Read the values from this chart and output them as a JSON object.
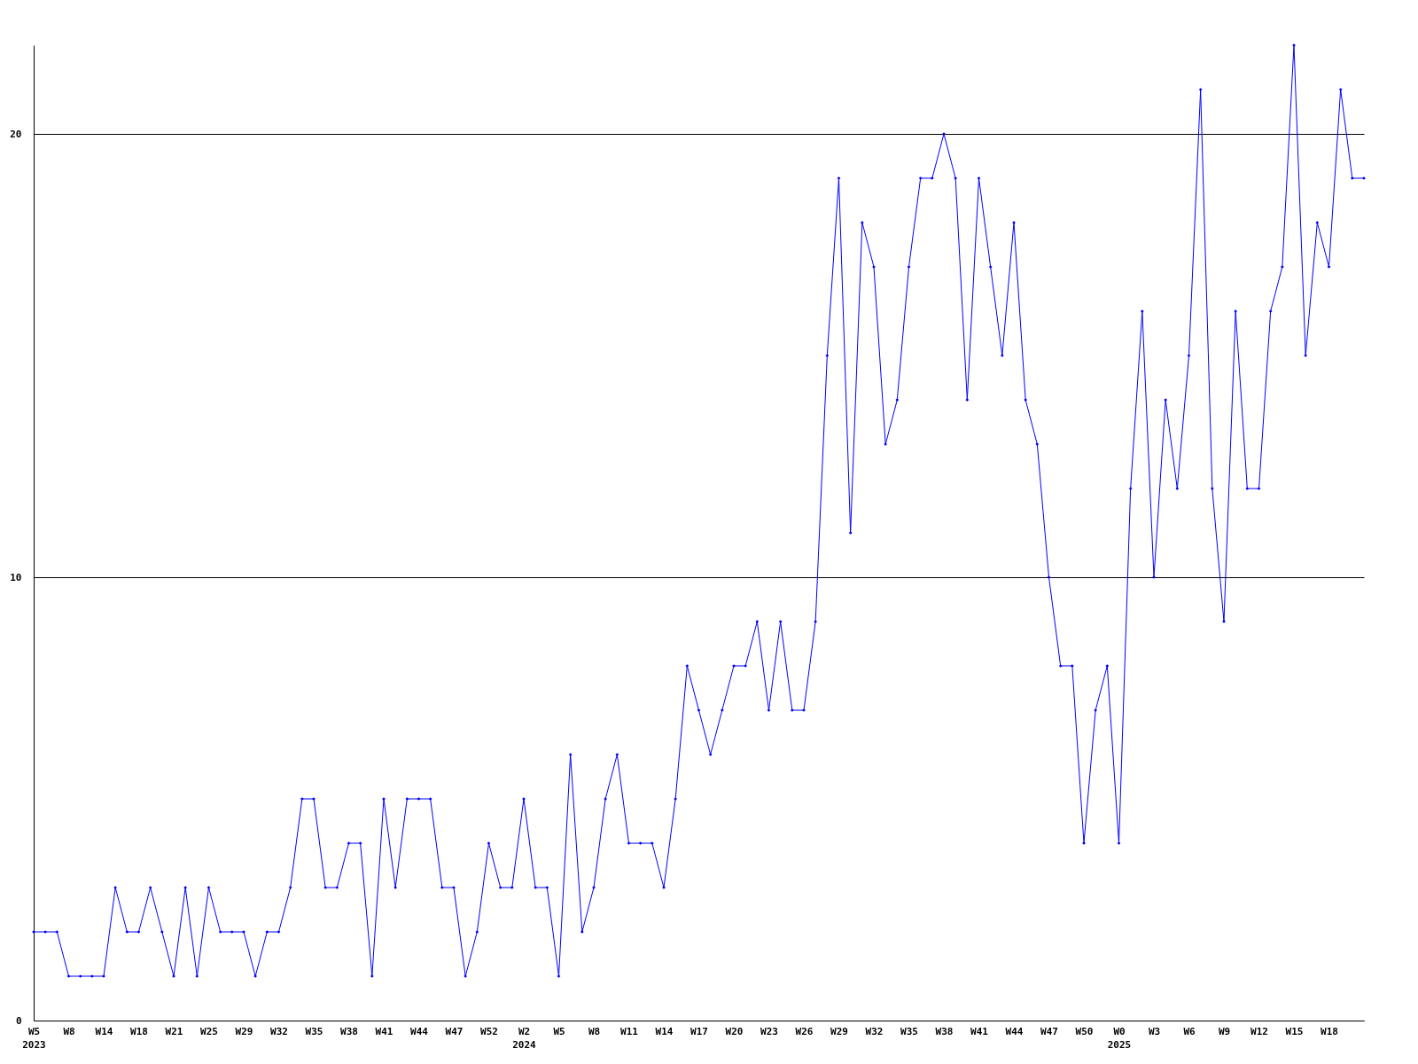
{
  "chart_data": {
    "type": "line",
    "categories": [
      "W5\n2023",
      null,
      null,
      "W8",
      null,
      null,
      "W14",
      null,
      null,
      "W18",
      null,
      null,
      "W21",
      null,
      null,
      "W25",
      null,
      null,
      "W29",
      null,
      null,
      "W32",
      null,
      null,
      "W35",
      null,
      null,
      "W38",
      null,
      null,
      "W41",
      null,
      null,
      "W44",
      null,
      null,
      "W47",
      null,
      null,
      "W52",
      null,
      null,
      "W2\n2024",
      null,
      null,
      "W5",
      null,
      null,
      "W8",
      null,
      null,
      "W11",
      null,
      null,
      "W14",
      null,
      null,
      "W17",
      null,
      null,
      "W20",
      null,
      null,
      "W23",
      null,
      null,
      "W26",
      null,
      null,
      "W29",
      null,
      null,
      "W32",
      null,
      null,
      "W35",
      null,
      null,
      "W38",
      null,
      null,
      "W41",
      null,
      null,
      "W44",
      null,
      null,
      "W47",
      null,
      null,
      "W50",
      null,
      null,
      "W0\n2025",
      null,
      null,
      "W3",
      null,
      null,
      "W6",
      null,
      null,
      "W9",
      null,
      null,
      "W12",
      null,
      null,
      "W15",
      null,
      null,
      "W18",
      null,
      null,
      null
    ],
    "series": [
      {
        "color": "#0000ff",
        "values": [
          2,
          2,
          2,
          1,
          1,
          1,
          1,
          3,
          2,
          2,
          3,
          2,
          1,
          3,
          1,
          3,
          2,
          2,
          2,
          1,
          2,
          2,
          3,
          5,
          5,
          3,
          3,
          4,
          4,
          1,
          5,
          3,
          5,
          5,
          5,
          3,
          3,
          1,
          2,
          4,
          3,
          3,
          5,
          3,
          3,
          1,
          6,
          2,
          3,
          5,
          6,
          4,
          4,
          4,
          3,
          5,
          8,
          7,
          6,
          7,
          8,
          8,
          9,
          7,
          9,
          7,
          7,
          9,
          15,
          19,
          11,
          18,
          17,
          13,
          14,
          17,
          19,
          19,
          20,
          19,
          14,
          19,
          17,
          15,
          18,
          14,
          13,
          10,
          8,
          8,
          4,
          7,
          8,
          4,
          12,
          16,
          10,
          14,
          12,
          15,
          21,
          12,
          9,
          16,
          12,
          12,
          16,
          17,
          22,
          15,
          18,
          17,
          21,
          19,
          19
        ]
      }
    ],
    "ylim": [
      0,
      22
    ],
    "yticks": [
      0,
      10,
      20
    ],
    "grid": "y",
    "marker": "diamond",
    "line_style": "solid"
  }
}
